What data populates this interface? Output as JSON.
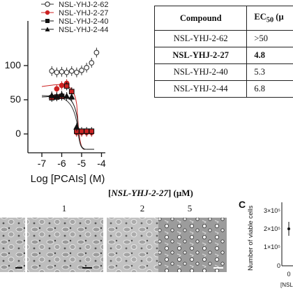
{
  "legend": [
    {
      "label": "NSL-YHJ-2-62",
      "marker": "circle-open",
      "color": "#333333"
    },
    {
      "label": "NSL-YHJ-2-27",
      "marker": "circle-filled",
      "color": "#cc2222"
    },
    {
      "label": "NSL-YHJ-2-40",
      "marker": "square-filled",
      "color": "#111111"
    },
    {
      "label": "NSL-YHJ-2-44",
      "marker": "triangle-filled",
      "color": "#111111"
    }
  ],
  "table": {
    "header_compound": "Compound",
    "header_ec50": "EC",
    "header_ec50_sub": "50",
    "header_ec50_rest": " (μ",
    "rows": [
      {
        "compound": "NSL-YHJ-2-62",
        "ec50": ">50"
      },
      {
        "compound": "NSL-YHJ-2-27",
        "ec50": "4.8"
      },
      {
        "compound": "NSL-YHJ-2-40",
        "ec50": "5.3"
      },
      {
        "compound": "NSL-YHJ-2-44",
        "ec50": "6.8"
      }
    ]
  },
  "chart_data": {
    "type": "scatter",
    "xlabel": "Log [PCAIs] (M)",
    "ylabel": "",
    "x_ticks": [
      "-7",
      "-6",
      "-5",
      "-4"
    ],
    "y_ticks": [
      "0",
      "50",
      "100"
    ],
    "xlim": [
      -7.3,
      -3.8
    ],
    "ylim": [
      0,
      130
    ],
    "series": [
      {
        "name": "NSL-YHJ-2-62",
        "x": [
          -6.5,
          -6.25,
          -6.0,
          -5.75,
          -5.5,
          -5.25,
          -5.0,
          -4.75,
          -4.5,
          -4.25
        ],
        "y": [
          92,
          90,
          91,
          90,
          92,
          90,
          93,
          97,
          104,
          119
        ]
      },
      {
        "name": "NSL-YHJ-2-27",
        "x": [
          -6.25,
          -6.0,
          -5.75,
          -5.5,
          -5.25,
          -5.0,
          -4.75,
          -4.5
        ],
        "y": [
          66,
          71,
          74,
          62,
          2,
          2,
          2,
          2
        ]
      },
      {
        "name": "NSL-YHJ-2-40",
        "x": [
          -6.5,
          -6.25,
          -6.0,
          -5.75,
          -5.5,
          -5.25,
          -5.0,
          -4.75,
          -4.5
        ],
        "y": [
          53,
          54,
          55,
          70,
          62,
          4,
          4,
          4,
          4
        ]
      },
      {
        "name": "NSL-YHJ-2-44",
        "x": [
          -6.5,
          -6.25,
          -6.0,
          -5.75,
          -5.5,
          -5.25
        ],
        "y": [
          56,
          55,
          57,
          55,
          54,
          10
        ]
      }
    ]
  },
  "micro": {
    "title_prefix": "[",
    "title_compound": "NSL-YHJ-2-27",
    "title_suffix": "] (μM)",
    "labels": [
      "1",
      "2",
      "5"
    ]
  },
  "panel_c": {
    "letter": "C",
    "ylabel": "Number of viable cells",
    "y_ticks": [
      "3×10⁵",
      "2×10⁵",
      "1×10⁵",
      "0"
    ],
    "x_tick": "0",
    "x_label_fragment": "[NSL",
    "bottom_fragment": "[NSL"
  }
}
